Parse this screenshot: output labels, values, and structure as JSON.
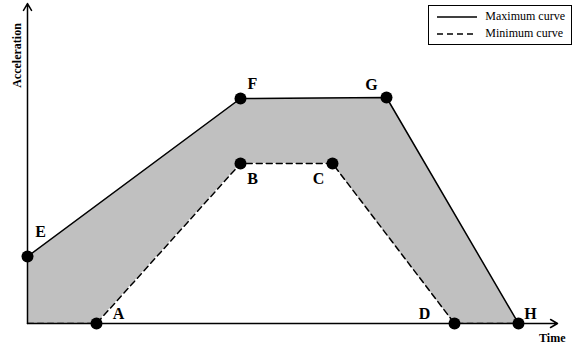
{
  "chart_data": {
    "type": "line",
    "x_label": "Time",
    "y_label": "Acceleration",
    "xlim": [
      0,
      53
    ],
    "ylim": [
      0,
      32
    ],
    "xticks": [],
    "yticks": [],
    "tick_labels": false,
    "grid": false,
    "legend": "top-right",
    "series": [
      {
        "name": "Maximum curve",
        "color": "#000000",
        "line_style": "solid",
        "x": [
          0,
          21.3,
          35.9,
          49.1
        ],
        "values": [
          6.7,
          22.5,
          22.6,
          0
        ]
      },
      {
        "name": "Minimum curve",
        "color": "#000000",
        "line_style": "dashed",
        "x": [
          0,
          6.9,
          21.3,
          30.5,
          42.7,
          49.1
        ],
        "values": [
          0,
          0,
          16,
          16,
          0,
          0
        ]
      }
    ],
    "annotations": [
      {
        "text": "A",
        "x": 6.9,
        "y": 0
      },
      {
        "text": "B",
        "x": 21.3,
        "y": 16
      },
      {
        "text": "C",
        "x": 30.5,
        "y": 16
      },
      {
        "text": "D",
        "x": 42.7,
        "y": 0
      },
      {
        "text": "E",
        "x": 0,
        "y": 6.7
      },
      {
        "text": "F",
        "x": 21.3,
        "y": 22.5
      },
      {
        "text": "G",
        "x": 35.9,
        "y": 22.6
      },
      {
        "text": "H",
        "x": 49.1,
        "y": 0
      }
    ]
  }
}
